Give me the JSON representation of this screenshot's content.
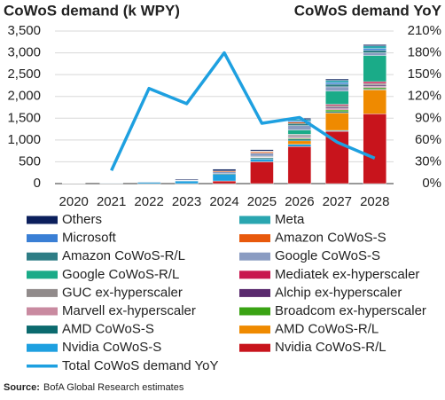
{
  "chart_data": {
    "type": "bar",
    "stacked": true,
    "title": "CoWoS demand (k WPY)",
    "title_right": "CoWoS demand YoY",
    "source_label": "Source:",
    "source": "BofA Global Research estimates",
    "categories": [
      "2020",
      "2021",
      "2022",
      "2023",
      "2024",
      "2025",
      "2026",
      "2027",
      "2028"
    ],
    "ylim": [
      0,
      3500
    ],
    "yticks": [
      0,
      500,
      {
        "value": 1000,
        "label": "1,000"
      },
      {
        "value": 1500,
        "label": "1,500"
      },
      {
        "value": 2000,
        "label": "2,000"
      },
      {
        "value": 2500,
        "label": "2,500"
      },
      {
        "value": 3000,
        "label": "3,000"
      },
      {
        "value": 3500,
        "label": "3,500"
      }
    ],
    "y2lim": [
      0,
      210
    ],
    "y2ticks": [
      {
        "value": 0,
        "label": "0%"
      },
      {
        "value": 30,
        "label": "30%"
      },
      {
        "value": 60,
        "label": "60%"
      },
      {
        "value": 90,
        "label": "90%"
      },
      {
        "value": 120,
        "label": "120%"
      },
      {
        "value": 150,
        "label": "150%"
      },
      {
        "value": 180,
        "label": "180%"
      },
      {
        "value": 210,
        "label": "210%"
      }
    ],
    "grid": true,
    "series": [
      {
        "name": "Nvidia CoWoS-R/L",
        "color": "#c8141c",
        "values": [
          0,
          0,
          0,
          0,
          60,
          500,
          850,
          1200,
          1600
        ]
      },
      {
        "name": "Nvidia CoWoS-S",
        "color": "#1ea0e0",
        "values": [
          5,
          10,
          30,
          60,
          150,
          60,
          50,
          20,
          0
        ]
      },
      {
        "name": "AMD CoWoS-R/L",
        "color": "#ef8a00",
        "values": [
          0,
          0,
          0,
          0,
          0,
          0,
          80,
          400,
          550
        ]
      },
      {
        "name": "AMD CoWoS-S",
        "color": "#0b6a6e",
        "values": [
          0,
          0,
          0,
          5,
          20,
          30,
          40,
          30,
          20
        ]
      },
      {
        "name": "Broadcom ex-hyperscaler",
        "color": "#3aa314",
        "values": [
          0,
          0,
          0,
          0,
          0,
          0,
          20,
          40,
          30
        ]
      },
      {
        "name": "Marvell ex-hyperscaler",
        "color": "#c98aa0",
        "values": [
          0,
          0,
          0,
          0,
          0,
          10,
          20,
          30,
          30
        ]
      },
      {
        "name": "Alchip ex-hyperscaler",
        "color": "#5a2a6e",
        "values": [
          0,
          0,
          0,
          0,
          0,
          10,
          20,
          30,
          30
        ]
      },
      {
        "name": "GUC ex-hyperscaler",
        "color": "#918b8b",
        "values": [
          0,
          0,
          0,
          0,
          0,
          20,
          40,
          40,
          40
        ]
      },
      {
        "name": "Mediatek ex-hyperscaler",
        "color": "#c8174f",
        "values": [
          0,
          0,
          0,
          0,
          0,
          0,
          10,
          30,
          40
        ]
      },
      {
        "name": "Google CoWoS-R/L",
        "color": "#1aab88",
        "values": [
          0,
          0,
          0,
          0,
          0,
          0,
          100,
          300,
          600
        ]
      },
      {
        "name": "Google CoWoS-S",
        "color": "#8a9cc2",
        "values": [
          0,
          0,
          0,
          10,
          40,
          70,
          100,
          100,
          60
        ]
      },
      {
        "name": "Amazon CoWoS-R/L",
        "color": "#2e7d85",
        "values": [
          0,
          0,
          0,
          0,
          0,
          0,
          50,
          60,
          60
        ]
      },
      {
        "name": "Amazon CoWoS-S",
        "color": "#e8590c",
        "values": [
          0,
          0,
          0,
          5,
          20,
          30,
          30,
          0,
          0
        ]
      },
      {
        "name": "Microsoft",
        "color": "#3a7fd5",
        "values": [
          0,
          0,
          0,
          0,
          0,
          10,
          30,
          40,
          40
        ]
      },
      {
        "name": "Meta",
        "color": "#2aa6b0",
        "values": [
          0,
          0,
          0,
          0,
          0,
          10,
          30,
          50,
          60
        ]
      },
      {
        "name": "Others",
        "color": "#0b1f5c",
        "values": [
          0,
          5,
          10,
          20,
          40,
          30,
          30,
          30,
          30
        ]
      },
      {
        "name": "Total CoWoS demand YoY",
        "type": "line",
        "axis": "y2",
        "color": "#1ea0e0",
        "values": [
          null,
          18,
          131,
          110,
          180,
          83,
          91,
          57,
          35
        ]
      }
    ]
  }
}
